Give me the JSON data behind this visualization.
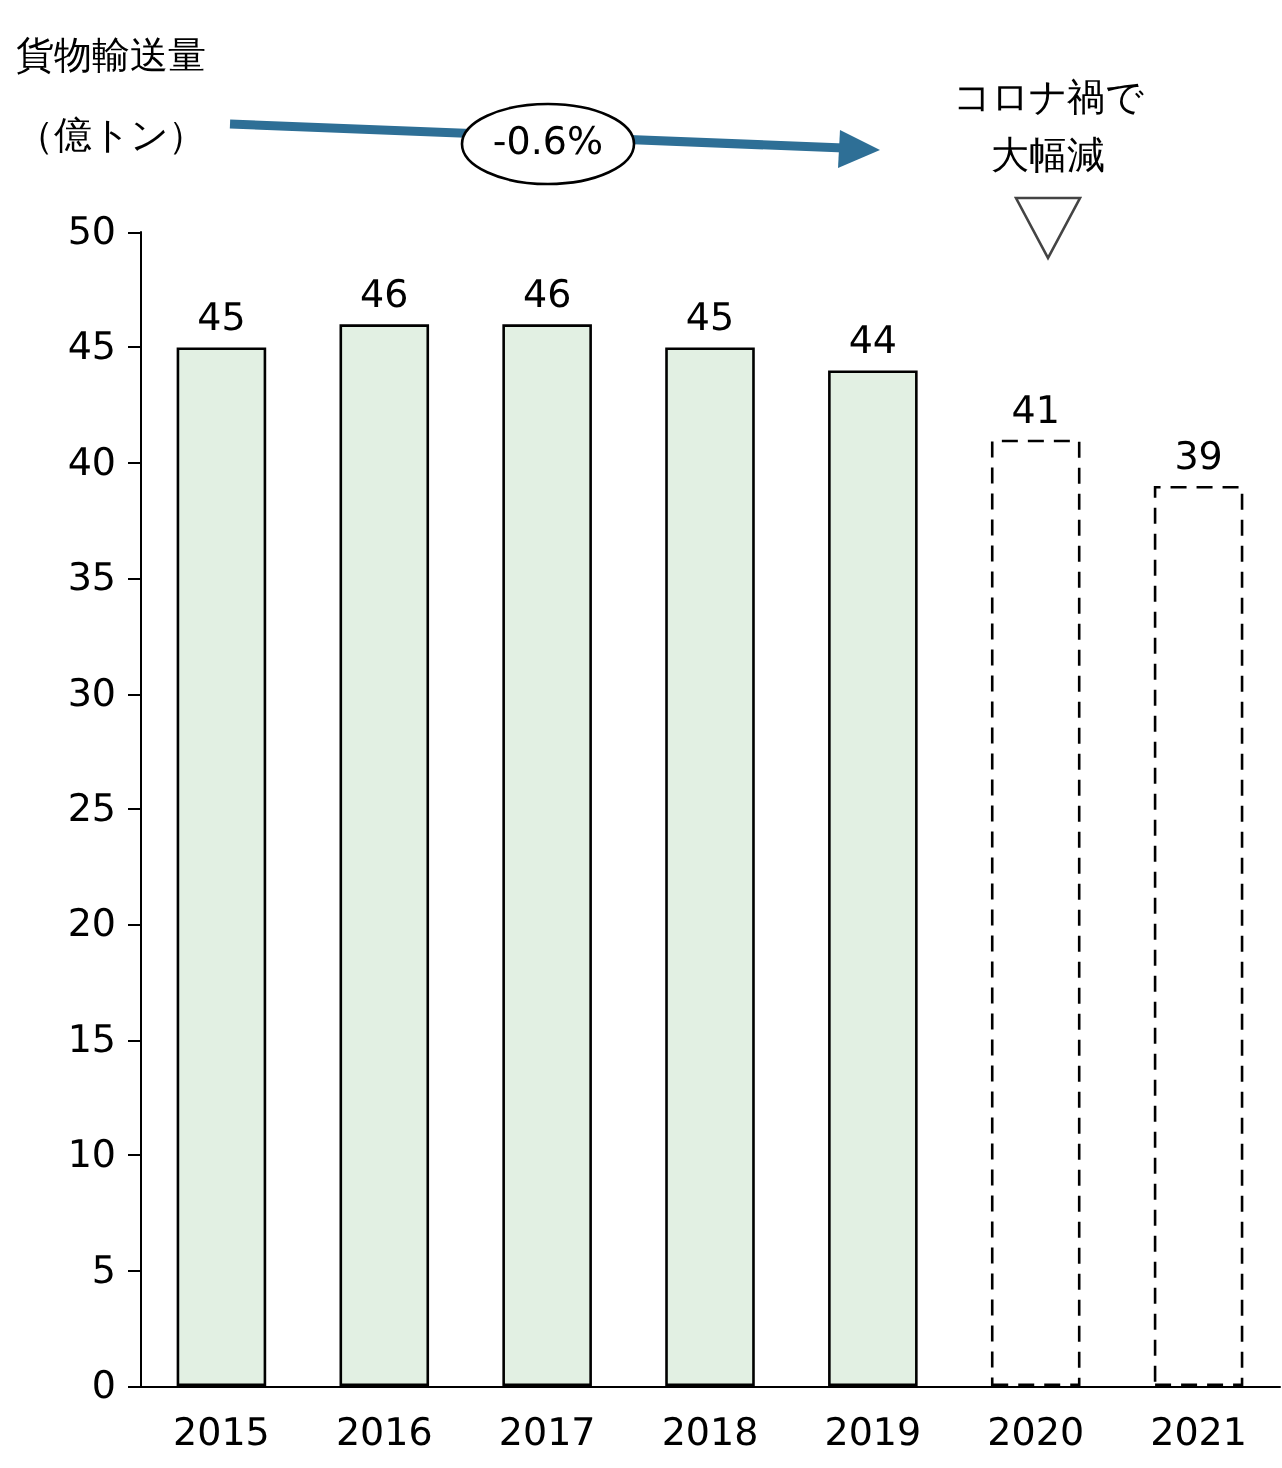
{
  "chart_data": {
    "type": "bar",
    "ylabel": "貨物輸送量（億トン）",
    "categories": [
      "2015",
      "2016",
      "2017",
      "2018",
      "2019",
      "2020",
      "2021"
    ],
    "series": [
      {
        "color": "#e2f0e3",
        "values": [
          45,
          46,
          46,
          45,
          44,
          null,
          null
        ]
      },
      {
        "color": "#ffffff",
        "line_style": "dashed",
        "values": [
          null,
          null,
          null,
          null,
          null,
          41,
          39
        ]
      }
    ],
    "ylim": [
      0,
      50
    ],
    "yticks": [
      0,
      5,
      10,
      15,
      20,
      25,
      30,
      35,
      40,
      45,
      50
    ],
    "grid": false,
    "data_labels": true,
    "annotations": [
      "-0.6%",
      "コロナ禍で大幅減"
    ]
  }
}
